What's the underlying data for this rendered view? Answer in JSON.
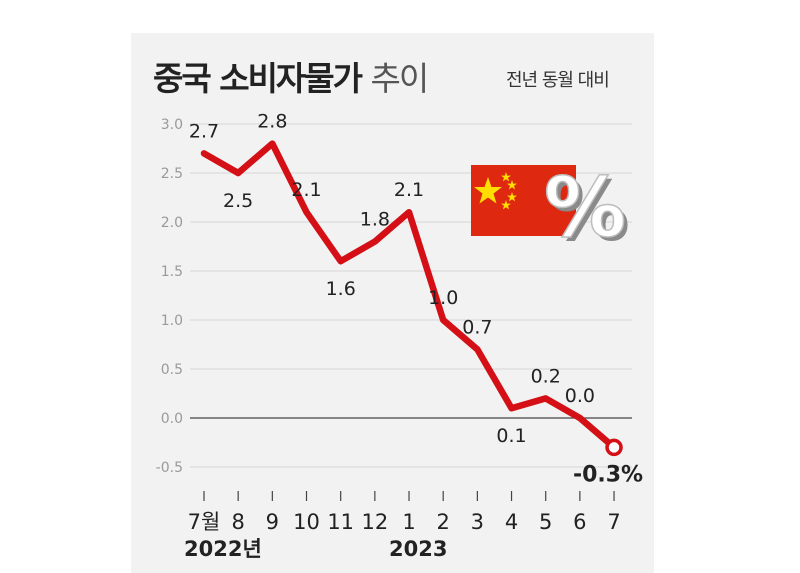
{
  "chart_data": {
    "type": "line",
    "title": "중국 소비자물가",
    "title_suffix": "추이",
    "subtitle": "전년 동월 대비",
    "categories": [
      "7월",
      "8",
      "9",
      "10",
      "11",
      "12",
      "1",
      "2",
      "3",
      "4",
      "5",
      "6",
      "7"
    ],
    "year_labels": [
      {
        "text": "2022년",
        "category_index": 0
      },
      {
        "text": "2023",
        "category_index": 6
      }
    ],
    "series": [
      {
        "values": [
          2.7,
          2.5,
          2.8,
          2.1,
          1.6,
          1.8,
          2.1,
          1.0,
          0.7,
          0.1,
          0.2,
          0.0,
          -0.3
        ],
        "labels": [
          "2.7",
          "2.5",
          "2.8",
          "2.1",
          "1.6",
          "1.8",
          "2.1",
          "1.0",
          "0.7",
          "0.1",
          "0.2",
          "0.0",
          "-0.3%"
        ]
      }
    ],
    "y_ticks": [
      "3.0",
      "2.5",
      "2.0",
      "1.5",
      "1.0",
      "0.5",
      "0.0",
      "-0.5"
    ],
    "ylim": [
      -0.5,
      3.0
    ],
    "grid": true,
    "colors": {
      "line": "#d40f16",
      "grid": "#d6d6d6",
      "zero_line": "#444444",
      "flag_red": "#de2910",
      "flag_star": "#ffde00"
    },
    "icons": [
      "china-flag-icon",
      "percent-icon"
    ]
  }
}
